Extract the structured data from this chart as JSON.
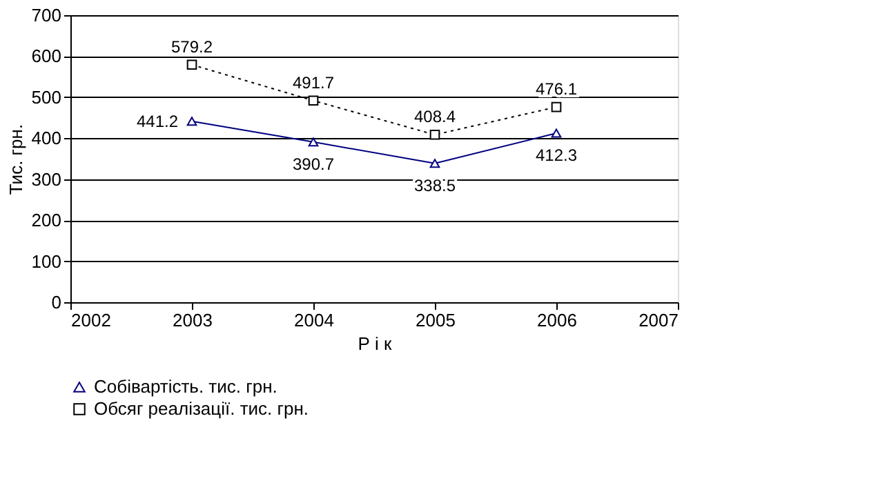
{
  "chart_data": {
    "type": "line",
    "xlabel": "Р і к",
    "ylabel": "Тис. грн.",
    "x": [
      2003,
      2004,
      2005,
      2006
    ],
    "series": [
      {
        "name": "Собівартість. тис. грн.",
        "color": "#000080",
        "values": [
          441.2,
          390.7,
          338.5,
          412.3
        ],
        "marker": "triangle",
        "line_style": "solid"
      },
      {
        "name": "Обсяг реалізації. тис. грн.",
        "color": "#000000",
        "values": [
          579.2,
          491.7,
          408.4,
          476.1
        ],
        "marker": "square",
        "line_style": "dotted"
      }
    ],
    "xlim": [
      2002,
      2007
    ],
    "xticks": [
      2002,
      2003,
      2004,
      2005,
      2006,
      2007
    ],
    "ylim": [
      0,
      700
    ],
    "yticks": [
      0,
      100,
      200,
      300,
      400,
      500,
      600,
      700
    ],
    "grid": "y",
    "legend": "bottom",
    "data_labels": true
  }
}
